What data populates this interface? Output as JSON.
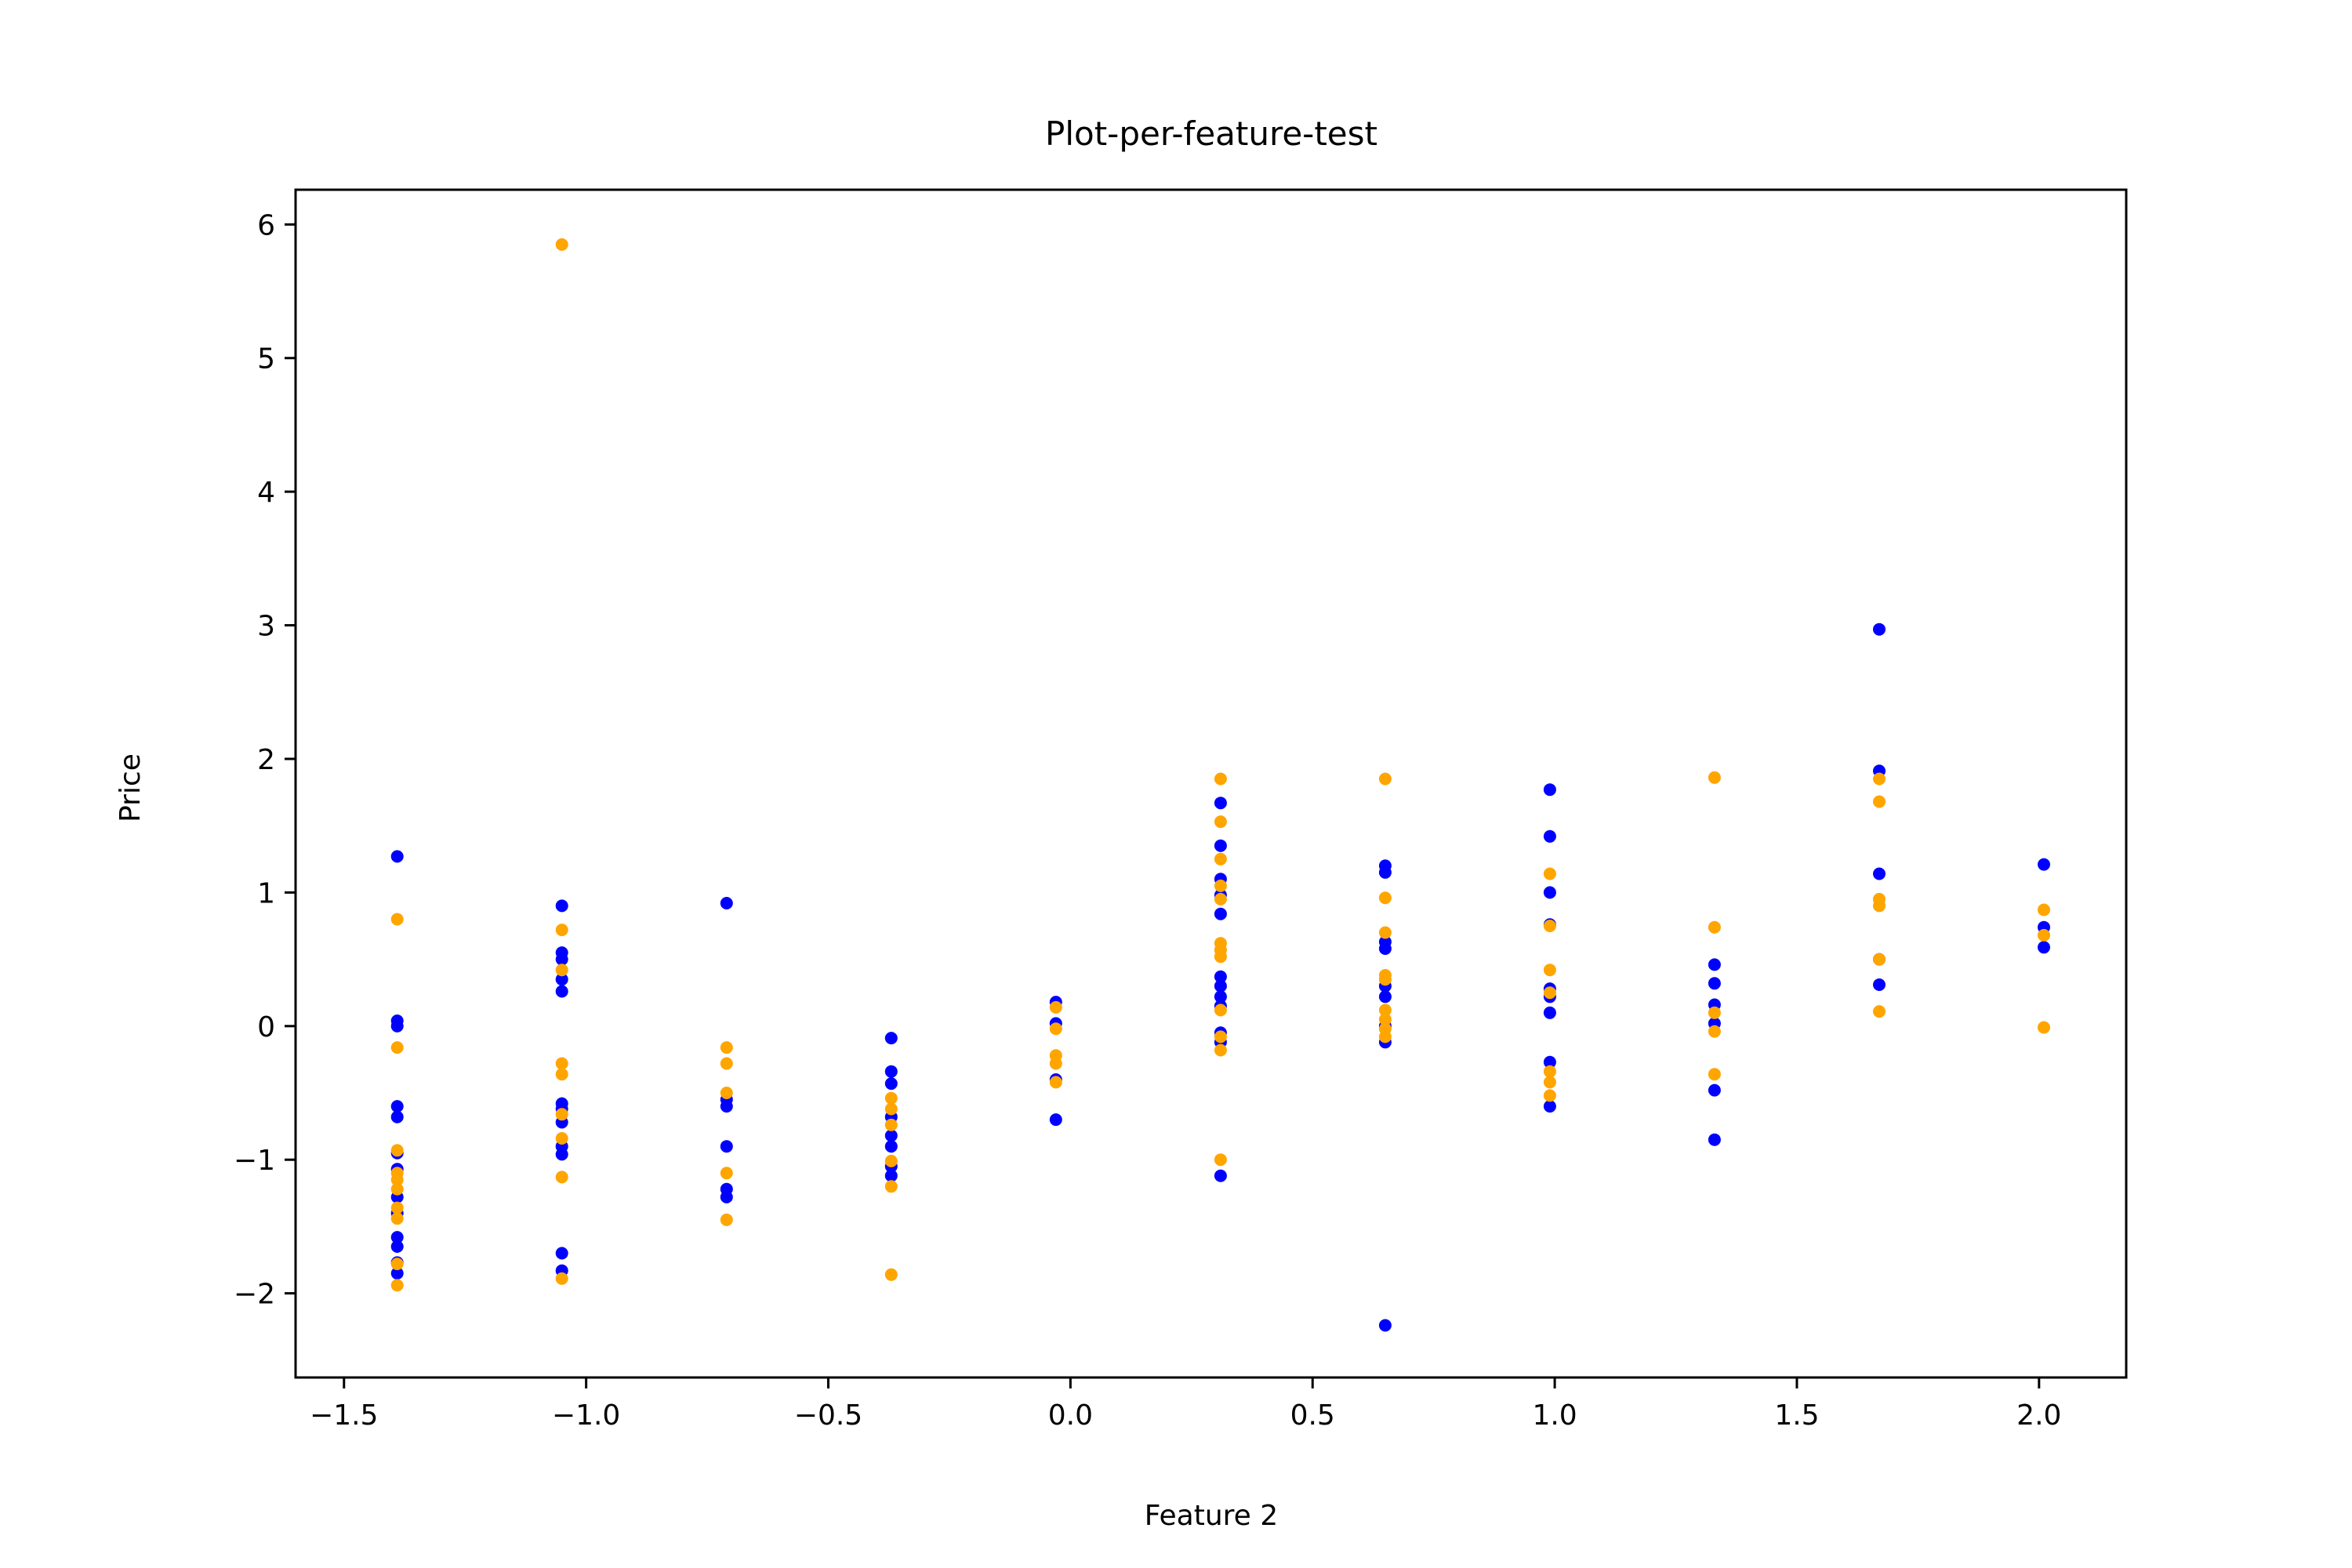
{
  "chart_data": {
    "type": "scatter",
    "title": "Plot-per-feature-test",
    "xlabel": "Feature 2",
    "ylabel": "Price",
    "xlim": [
      -1.6,
      2.18
    ],
    "ylim": [
      -2.63,
      6.26
    ],
    "x_ticks": [
      -1.5,
      -1.0,
      -0.5,
      0.0,
      0.5,
      1.0,
      1.5,
      2.0
    ],
    "x_tick_labels": [
      "−1.5",
      "−1.0",
      "−0.5",
      "0.0",
      "0.5",
      "1.0",
      "1.5",
      "2.0"
    ],
    "y_ticks": [
      -2,
      -1,
      0,
      1,
      2,
      3,
      4,
      5,
      6
    ],
    "y_tick_labels": [
      "−2",
      "−1",
      "0",
      "1",
      "2",
      "3",
      "4",
      "5",
      "6"
    ],
    "grid": false,
    "legend": "none",
    "series": [
      {
        "color": "#0000ff",
        "points": [
          [
            -1.39,
            1.27
          ],
          [
            -1.39,
            0.04
          ],
          [
            -1.39,
            0.0
          ],
          [
            -1.39,
            -0.6
          ],
          [
            -1.39,
            -0.68
          ],
          [
            -1.39,
            -0.95
          ],
          [
            -1.39,
            -1.07
          ],
          [
            -1.39,
            -1.28
          ],
          [
            -1.39,
            -1.4
          ],
          [
            -1.39,
            -1.58
          ],
          [
            -1.39,
            -1.65
          ],
          [
            -1.39,
            -1.77
          ],
          [
            -1.39,
            -1.85
          ],
          [
            -1.05,
            0.9
          ],
          [
            -1.05,
            0.55
          ],
          [
            -1.05,
            0.5
          ],
          [
            -1.05,
            0.35
          ],
          [
            -1.05,
            0.26
          ],
          [
            -1.05,
            -0.58
          ],
          [
            -1.05,
            -0.62
          ],
          [
            -1.05,
            -0.72
          ],
          [
            -1.05,
            -0.9
          ],
          [
            -1.05,
            -0.96
          ],
          [
            -1.05,
            -1.7
          ],
          [
            -1.05,
            -1.83
          ],
          [
            -0.71,
            0.92
          ],
          [
            -0.71,
            -0.55
          ],
          [
            -0.71,
            -0.6
          ],
          [
            -0.71,
            -0.9
          ],
          [
            -0.71,
            -1.22
          ],
          [
            -0.71,
            -1.28
          ],
          [
            -0.37,
            -0.09
          ],
          [
            -0.37,
            -0.34
          ],
          [
            -0.37,
            -0.43
          ],
          [
            -0.37,
            -0.68
          ],
          [
            -0.37,
            -0.82
          ],
          [
            -0.37,
            -0.9
          ],
          [
            -0.37,
            -1.05
          ],
          [
            -0.37,
            -1.12
          ],
          [
            -0.03,
            0.18
          ],
          [
            -0.03,
            0.02
          ],
          [
            -0.03,
            -0.4
          ],
          [
            -0.03,
            -0.7
          ],
          [
            0.31,
            1.67
          ],
          [
            0.31,
            1.35
          ],
          [
            0.31,
            1.1
          ],
          [
            0.31,
            0.98
          ],
          [
            0.31,
            0.84
          ],
          [
            0.31,
            0.37
          ],
          [
            0.31,
            0.3
          ],
          [
            0.31,
            0.22
          ],
          [
            0.31,
            0.15
          ],
          [
            0.31,
            -0.05
          ],
          [
            0.31,
            -0.12
          ],
          [
            0.31,
            -1.12
          ],
          [
            0.65,
            1.2
          ],
          [
            0.65,
            1.15
          ],
          [
            0.65,
            0.63
          ],
          [
            0.65,
            0.58
          ],
          [
            0.65,
            0.3
          ],
          [
            0.65,
            0.22
          ],
          [
            0.65,
            0.0
          ],
          [
            0.65,
            -0.12
          ],
          [
            0.65,
            -2.24
          ],
          [
            0.99,
            1.77
          ],
          [
            0.99,
            1.42
          ],
          [
            0.99,
            1.0
          ],
          [
            0.99,
            0.76
          ],
          [
            0.99,
            0.28
          ],
          [
            0.99,
            0.22
          ],
          [
            0.99,
            0.1
          ],
          [
            0.99,
            -0.27
          ],
          [
            0.99,
            -0.6
          ],
          [
            1.33,
            0.46
          ],
          [
            1.33,
            0.32
          ],
          [
            1.33,
            0.16
          ],
          [
            1.33,
            0.02
          ],
          [
            1.33,
            -0.48
          ],
          [
            1.33,
            -0.85
          ],
          [
            1.67,
            2.97
          ],
          [
            1.67,
            1.91
          ],
          [
            1.67,
            1.14
          ],
          [
            1.67,
            0.5
          ],
          [
            1.67,
            0.31
          ],
          [
            2.01,
            1.21
          ],
          [
            2.01,
            0.74
          ],
          [
            2.01,
            0.59
          ]
        ]
      },
      {
        "color": "#ffa500",
        "points": [
          [
            -1.39,
            0.8
          ],
          [
            -1.39,
            -0.16
          ],
          [
            -1.39,
            -0.93
          ],
          [
            -1.39,
            -1.1
          ],
          [
            -1.39,
            -1.15
          ],
          [
            -1.39,
            -1.22
          ],
          [
            -1.39,
            -1.36
          ],
          [
            -1.39,
            -1.44
          ],
          [
            -1.39,
            -1.78
          ],
          [
            -1.39,
            -1.94
          ],
          [
            -1.05,
            5.85
          ],
          [
            -1.05,
            0.72
          ],
          [
            -1.05,
            0.42
          ],
          [
            -1.05,
            -0.28
          ],
          [
            -1.05,
            -0.36
          ],
          [
            -1.05,
            -0.66
          ],
          [
            -1.05,
            -0.84
          ],
          [
            -1.05,
            -1.13
          ],
          [
            -1.05,
            -1.89
          ],
          [
            -0.71,
            -0.16
          ],
          [
            -0.71,
            -0.28
          ],
          [
            -0.71,
            -0.5
          ],
          [
            -0.71,
            -1.1
          ],
          [
            -0.71,
            -1.45
          ],
          [
            -0.37,
            -0.54
          ],
          [
            -0.37,
            -0.62
          ],
          [
            -0.37,
            -0.74
          ],
          [
            -0.37,
            -1.01
          ],
          [
            -0.37,
            -1.2
          ],
          [
            -0.37,
            -1.86
          ],
          [
            -0.03,
            0.14
          ],
          [
            -0.03,
            -0.02
          ],
          [
            -0.03,
            -0.22
          ],
          [
            -0.03,
            -0.28
          ],
          [
            -0.03,
            -0.42
          ],
          [
            0.31,
            1.85
          ],
          [
            0.31,
            1.53
          ],
          [
            0.31,
            1.25
          ],
          [
            0.31,
            1.05
          ],
          [
            0.31,
            0.95
          ],
          [
            0.31,
            0.62
          ],
          [
            0.31,
            0.57
          ],
          [
            0.31,
            0.52
          ],
          [
            0.31,
            0.12
          ],
          [
            0.31,
            -0.08
          ],
          [
            0.31,
            -0.18
          ],
          [
            0.31,
            -1.0
          ],
          [
            0.65,
            1.85
          ],
          [
            0.65,
            0.96
          ],
          [
            0.65,
            0.7
          ],
          [
            0.65,
            0.38
          ],
          [
            0.65,
            0.35
          ],
          [
            0.65,
            0.12
          ],
          [
            0.65,
            0.05
          ],
          [
            0.65,
            -0.02
          ],
          [
            0.65,
            -0.08
          ],
          [
            0.99,
            1.14
          ],
          [
            0.99,
            0.75
          ],
          [
            0.99,
            0.42
          ],
          [
            0.99,
            0.25
          ],
          [
            0.99,
            -0.34
          ],
          [
            0.99,
            -0.42
          ],
          [
            0.99,
            -0.52
          ],
          [
            1.33,
            1.86
          ],
          [
            1.33,
            0.74
          ],
          [
            1.33,
            0.1
          ],
          [
            1.33,
            -0.04
          ],
          [
            1.33,
            -0.36
          ],
          [
            1.67,
            1.85
          ],
          [
            1.67,
            1.68
          ],
          [
            1.67,
            0.95
          ],
          [
            1.67,
            0.9
          ],
          [
            1.67,
            0.5
          ],
          [
            1.67,
            0.11
          ],
          [
            2.01,
            0.87
          ],
          [
            2.01,
            0.68
          ],
          [
            2.01,
            -0.01
          ]
        ]
      }
    ]
  }
}
